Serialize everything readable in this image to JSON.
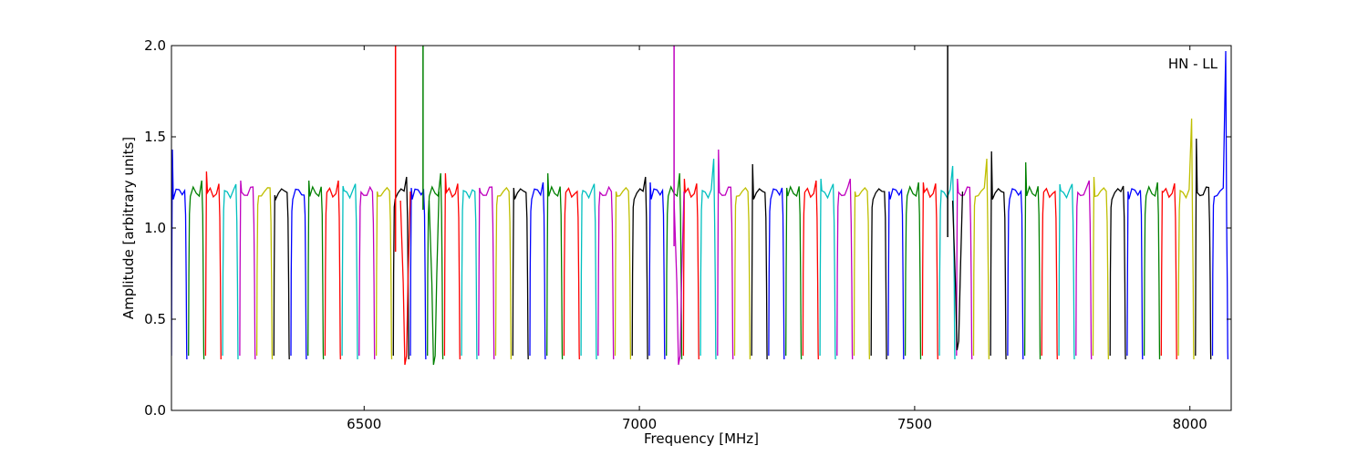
{
  "chart_data": {
    "type": "line",
    "title": "",
    "annotation": "HN - LL",
    "xlabel": "Frequency [MHz]",
    "ylabel": "Amplitude [arbitrary units]",
    "xlim": [
      6150,
      8075
    ],
    "ylim": [
      0,
      2.0
    ],
    "x_ticks": [
      6500,
      7000,
      7500,
      8000
    ],
    "y_ticks": [
      0.0,
      0.5,
      1.0,
      1.5,
      2.0
    ],
    "x_tick_labels": [
      "6500",
      "7000",
      "7500",
      "8000"
    ],
    "y_tick_labels": [
      "0.0",
      "0.5",
      "1.0",
      "1.5",
      "2.0"
    ],
    "grid": false,
    "channel_profile": {
      "x": [
        0.0,
        0.02,
        0.06,
        0.12,
        0.3,
        0.5,
        0.7,
        0.86,
        0.92,
        0.96,
        0.99,
        1.0
      ],
      "y": [
        0.3,
        0.75,
        1.1,
        1.18,
        1.2,
        1.19,
        1.2,
        1.22,
        1.05,
        0.7,
        0.32,
        0.28
      ]
    },
    "series": [
      {
        "start": 6150,
        "end": 6178,
        "color": "#0000ff",
        "peak": 1.43
      },
      {
        "start": 6181,
        "end": 6209,
        "color": "#008000",
        "peak": 1.26
      },
      {
        "start": 6212,
        "end": 6240,
        "color": "#ff0000",
        "peak": 1.31
      },
      {
        "start": 6243,
        "end": 6271,
        "color": "#00bfbf",
        "peak": 1.24
      },
      {
        "start": 6274,
        "end": 6302,
        "color": "#bf00bf",
        "peak": 1.26
      },
      {
        "start": 6305,
        "end": 6333,
        "color": "#bfbf00",
        "peak": 1.22
      },
      {
        "start": 6336,
        "end": 6364,
        "color": "#000000",
        "peak": 1.18
      },
      {
        "start": 6367,
        "end": 6395,
        "color": "#0000ff",
        "peak": 1.18
      },
      {
        "start": 6398,
        "end": 6426,
        "color": "#008000",
        "peak": 1.26
      },
      {
        "start": 6429,
        "end": 6457,
        "color": "#ff0000",
        "peak": 1.26
      },
      {
        "start": 6460,
        "end": 6488,
        "color": "#00bfbf",
        "peak": 1.23
      },
      {
        "start": 6491,
        "end": 6519,
        "color": "#bf00bf",
        "peak": 1.2
      },
      {
        "start": 6522,
        "end": 6550,
        "color": "#bfbf00",
        "peak": 1.2
      },
      {
        "start": 6553,
        "end": 6581,
        "color": "#000000",
        "peak": 1.28
      },
      {
        "start": 6584,
        "end": 6612,
        "color": "#0000ff",
        "peak": 1.22
      },
      {
        "start": 6615,
        "end": 6643,
        "color": "#008000",
        "peak": 1.3
      },
      {
        "start": 6646,
        "end": 6674,
        "color": "#ff0000",
        "peak": 1.3
      },
      {
        "start": 6677,
        "end": 6705,
        "color": "#00bfbf",
        "peak": 1.2
      },
      {
        "start": 6708,
        "end": 6736,
        "color": "#bf00bf",
        "peak": 1.22
      },
      {
        "start": 6739,
        "end": 6767,
        "color": "#bfbf00",
        "peak": 1.2
      },
      {
        "start": 6770,
        "end": 6798,
        "color": "#000000",
        "peak": 1.22
      },
      {
        "start": 6801,
        "end": 6829,
        "color": "#0000ff",
        "peak": 1.25
      },
      {
        "start": 6832,
        "end": 6860,
        "color": "#008000",
        "peak": 1.3
      },
      {
        "start": 6863,
        "end": 6891,
        "color": "#ff0000",
        "peak": 1.2
      },
      {
        "start": 6894,
        "end": 6922,
        "color": "#00bfbf",
        "peak": 1.18
      },
      {
        "start": 6925,
        "end": 6953,
        "color": "#bf00bf",
        "peak": 1.2
      },
      {
        "start": 6956,
        "end": 6984,
        "color": "#bfbf00",
        "peak": 1.2
      },
      {
        "start": 6987,
        "end": 7015,
        "color": "#000000",
        "peak": 1.28
      },
      {
        "start": 7018,
        "end": 7046,
        "color": "#0000ff",
        "peak": 1.25
      },
      {
        "start": 7049,
        "end": 7077,
        "color": "#008000",
        "peak": 1.3
      },
      {
        "start": 7080,
        "end": 7108,
        "color": "#ff0000",
        "peak": 1.27
      },
      {
        "start": 7111,
        "end": 7139,
        "color": "#00bfbf",
        "peak": 1.38
      },
      {
        "start": 7142,
        "end": 7170,
        "color": "#bf00bf",
        "peak": 1.43
      },
      {
        "start": 7173,
        "end": 7201,
        "color": "#bfbf00",
        "peak": 1.2
      },
      {
        "start": 7204,
        "end": 7232,
        "color": "#000000",
        "peak": 1.35
      },
      {
        "start": 7235,
        "end": 7263,
        "color": "#0000ff",
        "peak": 1.22
      },
      {
        "start": 7266,
        "end": 7294,
        "color": "#008000",
        "peak": 1.22
      },
      {
        "start": 7297,
        "end": 7325,
        "color": "#ff0000",
        "peak": 1.26
      },
      {
        "start": 7328,
        "end": 7356,
        "color": "#00bfbf",
        "peak": 1.27
      },
      {
        "start": 7359,
        "end": 7387,
        "color": "#bf00bf",
        "peak": 1.27
      },
      {
        "start": 7390,
        "end": 7418,
        "color": "#bfbf00",
        "peak": 1.2
      },
      {
        "start": 7421,
        "end": 7449,
        "color": "#000000",
        "peak": 1.2
      },
      {
        "start": 7452,
        "end": 7480,
        "color": "#0000ff",
        "peak": 1.2
      },
      {
        "start": 7483,
        "end": 7511,
        "color": "#008000",
        "peak": 1.25
      },
      {
        "start": 7514,
        "end": 7542,
        "color": "#ff0000",
        "peak": 1.25
      },
      {
        "start": 7545,
        "end": 7573,
        "color": "#00bfbf",
        "peak": 1.34
      },
      {
        "start": 7576,
        "end": 7604,
        "color": "#bf00bf",
        "peak": 1.27
      },
      {
        "start": 7607,
        "end": 7635,
        "color": "#bfbf00",
        "peak": 1.38
      },
      {
        "start": 7638,
        "end": 7666,
        "color": "#000000",
        "peak": 1.42
      },
      {
        "start": 7669,
        "end": 7697,
        "color": "#0000ff",
        "peak": 1.2
      },
      {
        "start": 7700,
        "end": 7728,
        "color": "#008000",
        "peak": 1.36
      },
      {
        "start": 7731,
        "end": 7759,
        "color": "#ff0000",
        "peak": 1.2
      },
      {
        "start": 7762,
        "end": 7790,
        "color": "#00bfbf",
        "peak": 1.24
      },
      {
        "start": 7793,
        "end": 7821,
        "color": "#bf00bf",
        "peak": 1.26
      },
      {
        "start": 7824,
        "end": 7852,
        "color": "#bfbf00",
        "peak": 1.28
      },
      {
        "start": 7855,
        "end": 7883,
        "color": "#000000",
        "peak": 1.23
      },
      {
        "start": 7886,
        "end": 7914,
        "color": "#0000ff",
        "peak": 1.2
      },
      {
        "start": 7917,
        "end": 7945,
        "color": "#008000",
        "peak": 1.25
      },
      {
        "start": 7948,
        "end": 7976,
        "color": "#ff0000",
        "peak": 1.2
      },
      {
        "start": 7979,
        "end": 8007,
        "color": "#bfbf00",
        "peak": 1.6
      },
      {
        "start": 8010,
        "end": 8038,
        "color": "#000000",
        "peak": 1.49
      },
      {
        "start": 8041,
        "end": 8069,
        "color": "#0000ff",
        "peak": 1.97
      }
    ],
    "spikes": [
      {
        "x": 6557,
        "top": 2.0,
        "bottom": 0.87,
        "color": "#ff0000"
      },
      {
        "x": 6607,
        "top": 2.0,
        "bottom": 1.1,
        "color": "#008000"
      },
      {
        "x": 7063,
        "top": 2.0,
        "bottom": 0.9,
        "color": "#bf00bf"
      },
      {
        "x": 7560,
        "top": 2.0,
        "bottom": 0.95,
        "color": "#000000"
      }
    ],
    "dips": [
      {
        "x": 6575,
        "depth": 0.25,
        "color": "#ff0000"
      },
      {
        "x": 6627,
        "depth": 0.25,
        "color": "#008000"
      },
      {
        "x": 7072,
        "depth": 0.25,
        "color": "#bf00bf"
      },
      {
        "x": 7578,
        "depth": 0.33,
        "color": "#000000"
      }
    ]
  }
}
